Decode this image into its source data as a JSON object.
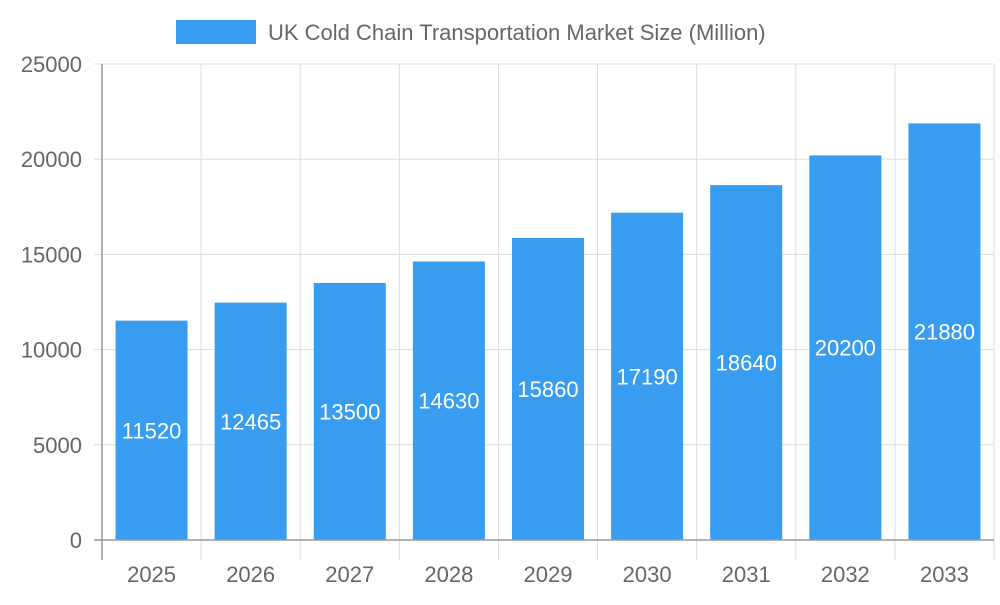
{
  "chart_data": {
    "type": "bar",
    "title": "",
    "xlabel": "",
    "ylabel": "",
    "legend": {
      "placement": "top",
      "entries": [
        "UK Cold Chain Transportation Market Size (Million)"
      ]
    },
    "categories": [
      "2025",
      "2026",
      "2027",
      "2028",
      "2029",
      "2030",
      "2031",
      "2032",
      "2033"
    ],
    "series": [
      {
        "name": "UK Cold Chain Transportation Market Size (Million)",
        "values": [
          11520,
          12465,
          13500,
          14630,
          15860,
          17190,
          18640,
          20200,
          21880
        ]
      }
    ],
    "ylim": [
      0,
      25000
    ],
    "yticks": [
      "0",
      "5000",
      "10000",
      "15000",
      "20000",
      "25000"
    ],
    "grid": true,
    "data_labels": true,
    "colors": {
      "bar": "#389cf0",
      "grid": "#dddddd",
      "axis": "#999999",
      "text": "#666666",
      "label": "#ffffff"
    }
  }
}
